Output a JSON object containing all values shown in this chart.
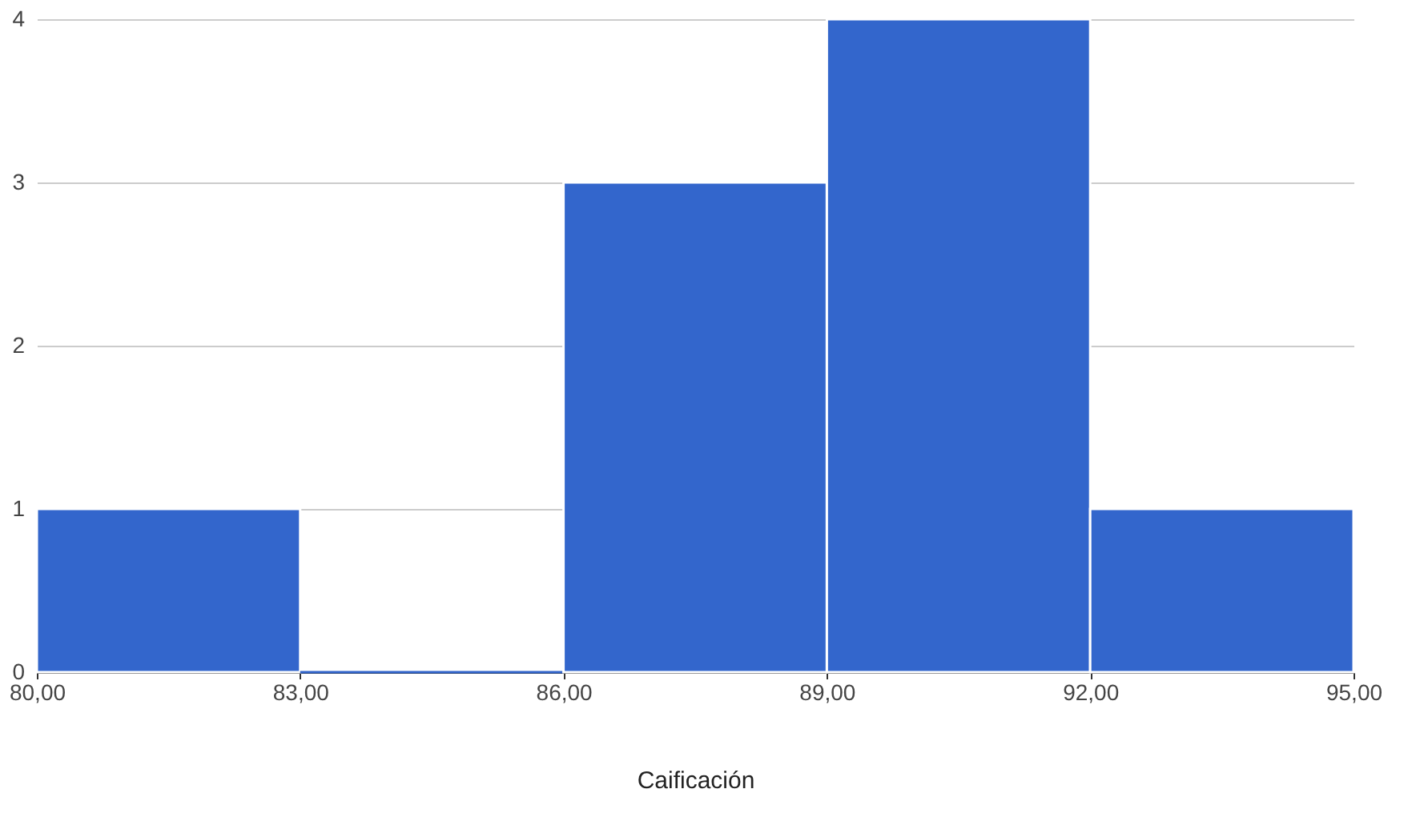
{
  "chart_data": {
    "type": "histogram",
    "xlabel": "Caificación",
    "bins": [
      80,
      83,
      86,
      89,
      92,
      95
    ],
    "values": [
      1,
      0,
      3,
      4,
      1
    ],
    "color": "#3366cc",
    "xlim": [
      80,
      95
    ],
    "xticks": [
      {
        "value": 80,
        "label": "80,00"
      },
      {
        "value": 83,
        "label": "83,00"
      },
      {
        "value": 86,
        "label": "86,00"
      },
      {
        "value": 89,
        "label": "89,00"
      },
      {
        "value": 92,
        "label": "92,00"
      },
      {
        "value": 95,
        "label": "95,00"
      }
    ],
    "ylim": [
      0,
      4
    ],
    "yticks": [
      0,
      1,
      2,
      3,
      4
    ],
    "grid": "y"
  }
}
